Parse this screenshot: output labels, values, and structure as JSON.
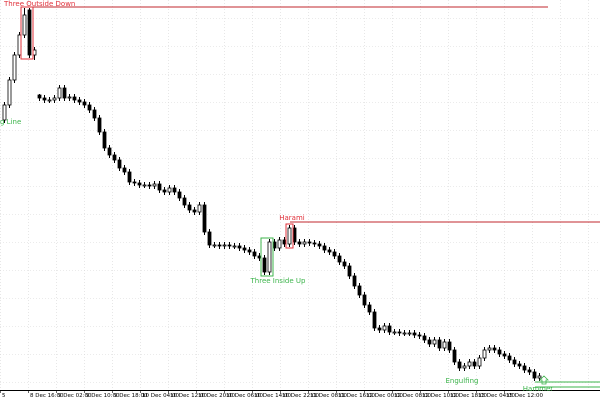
{
  "chart_data": {
    "type": "candlestick",
    "ylim": [
      0,
      400
    ],
    "grid": true,
    "bull_color": "#ffffff",
    "bear_color": "#000000",
    "x_labels": [
      "5",
      "8 Dec 16:00",
      "9 Dec 02:00",
      "9 Dec 10:00",
      "9 Dec 18:00",
      "10 Dec 04:00",
      "10 Dec 12:00",
      "10 Dec 20:00",
      "10 Dec 06:00",
      "10 Dec 14:00",
      "10 Dec 22:00",
      "11 Dec 08:00",
      "11 Dec 16:00",
      "12 Dec 00:00",
      "12 Dec 08:00",
      "12 Dec 10:00",
      "12 Dec 18:00",
      "13 Dec 04:00",
      "15 Dec 12:00"
    ],
    "ohlc": [
      [
        280,
        298,
        277,
        295
      ],
      [
        295,
        323,
        292,
        320
      ],
      [
        320,
        348,
        317,
        345
      ],
      [
        345,
        368,
        342,
        365
      ],
      [
        365,
        392,
        362,
        385
      ],
      [
        390,
        392,
        342,
        345
      ],
      [
        345,
        353,
        340,
        350
      ],
      [
        305,
        306,
        299,
        302
      ],
      [
        302,
        305,
        297,
        300
      ],
      [
        300,
        303,
        297,
        300
      ],
      [
        300,
        305,
        297,
        302
      ],
      [
        302,
        315,
        299,
        312
      ],
      [
        312,
        315,
        299,
        302
      ],
      [
        302,
        306,
        299,
        303
      ],
      [
        303,
        306,
        297,
        300
      ],
      [
        300,
        303,
        295,
        298
      ],
      [
        298,
        301,
        292,
        295
      ],
      [
        295,
        298,
        287,
        290
      ],
      [
        290,
        293,
        279,
        282
      ],
      [
        282,
        285,
        265,
        268
      ],
      [
        268,
        271,
        249,
        252
      ],
      [
        252,
        255,
        242,
        245
      ],
      [
        245,
        248,
        237,
        240
      ],
      [
        240,
        243,
        229,
        232
      ],
      [
        232,
        235,
        225,
        228
      ],
      [
        228,
        231,
        215,
        218
      ],
      [
        218,
        221,
        214,
        217
      ],
      [
        217,
        220,
        212,
        215
      ],
      [
        215,
        218,
        212,
        215
      ],
      [
        215,
        218,
        211,
        214
      ],
      [
        214,
        219,
        211,
        216
      ],
      [
        216,
        219,
        207,
        210
      ],
      [
        210,
        213,
        205,
        208
      ],
      [
        208,
        215,
        205,
        212
      ],
      [
        212,
        215,
        205,
        208
      ],
      [
        208,
        211,
        199,
        202
      ],
      [
        202,
        205,
        192,
        195
      ],
      [
        195,
        198,
        187,
        190
      ],
      [
        190,
        193,
        185,
        188
      ],
      [
        188,
        198,
        185,
        195
      ],
      [
        195,
        198,
        165,
        168
      ],
      [
        168,
        171,
        152,
        155
      ],
      [
        155,
        158,
        152,
        155
      ],
      [
        155,
        158,
        151,
        154
      ],
      [
        154,
        158,
        151,
        155
      ],
      [
        155,
        158,
        151,
        154
      ],
      [
        154,
        157,
        151,
        154
      ],
      [
        154,
        157,
        149,
        152
      ],
      [
        152,
        155,
        147,
        150
      ],
      [
        150,
        153,
        145,
        148
      ],
      [
        148,
        151,
        141,
        144
      ],
      [
        144,
        147,
        139,
        142
      ],
      [
        142,
        145,
        125,
        128
      ],
      [
        128,
        161,
        125,
        158
      ],
      [
        158,
        161,
        149,
        152
      ],
      [
        152,
        163,
        149,
        160
      ],
      [
        160,
        163,
        153,
        156
      ],
      [
        156,
        175,
        153,
        172
      ],
      [
        172,
        175,
        155,
        158
      ],
      [
        158,
        161,
        153,
        156
      ],
      [
        156,
        161,
        153,
        158
      ],
      [
        158,
        161,
        154,
        157
      ],
      [
        157,
        160,
        153,
        156
      ],
      [
        156,
        159,
        151,
        154
      ],
      [
        154,
        157,
        147,
        150
      ],
      [
        150,
        153,
        145,
        148
      ],
      [
        148,
        151,
        141,
        144
      ],
      [
        144,
        147,
        135,
        138
      ],
      [
        138,
        141,
        131,
        134
      ],
      [
        134,
        137,
        121,
        124
      ],
      [
        124,
        127,
        111,
        114
      ],
      [
        114,
        117,
        102,
        105
      ],
      [
        105,
        108,
        92,
        95
      ],
      [
        95,
        98,
        85,
        88
      ],
      [
        88,
        91,
        69,
        72
      ],
      [
        72,
        75,
        67,
        70
      ],
      [
        70,
        77,
        67,
        74
      ],
      [
        74,
        77,
        65,
        68
      ],
      [
        68,
        71,
        65,
        68
      ],
      [
        68,
        71,
        64,
        67
      ],
      [
        67,
        70,
        64,
        67
      ],
      [
        67,
        70,
        64,
        67
      ],
      [
        67,
        70,
        62,
        65
      ],
      [
        65,
        68,
        61,
        64
      ],
      [
        64,
        67,
        57,
        60
      ],
      [
        60,
        63,
        53,
        56
      ],
      [
        56,
        63,
        53,
        60
      ],
      [
        60,
        63,
        49,
        52
      ],
      [
        52,
        61,
        49,
        58
      ],
      [
        58,
        61,
        47,
        50
      ],
      [
        50,
        53,
        35,
        38
      ],
      [
        38,
        41,
        29,
        32
      ],
      [
        32,
        37,
        29,
        34
      ],
      [
        34,
        41,
        31,
        38
      ],
      [
        38,
        41,
        31,
        34
      ],
      [
        34,
        45,
        31,
        42
      ],
      [
        42,
        53,
        39,
        50
      ],
      [
        50,
        55,
        47,
        52
      ],
      [
        52,
        55,
        47,
        50
      ],
      [
        50,
        53,
        43,
        46
      ],
      [
        46,
        49,
        41,
        44
      ],
      [
        44,
        47,
        37,
        40
      ],
      [
        40,
        43,
        33,
        36
      ],
      [
        36,
        39,
        31,
        34
      ],
      [
        34,
        37,
        27,
        30
      ],
      [
        30,
        33,
        25,
        28
      ],
      [
        28,
        31,
        19,
        22
      ],
      [
        22,
        27,
        19,
        24
      ]
    ],
    "levels": [
      {
        "value": 393,
        "color": "#c0272d"
      },
      {
        "value": 178,
        "color": "#c0272d"
      },
      {
        "value": 18,
        "color": "#3cb44b"
      },
      {
        "value": 13,
        "color": "#3cb44b"
      }
    ],
    "annotations": [
      {
        "text": "Three Outside Down",
        "color": "#e0303a"
      },
      {
        "text": "g Line",
        "color": "#3cb44b"
      },
      {
        "text": "Harami",
        "color": "#e0303a"
      },
      {
        "text": "Three Inside Up",
        "color": "#3cb44b"
      },
      {
        "text": "Engulfing",
        "color": "#3cb44b"
      },
      {
        "text": "Hammer",
        "color": "#3cb44b"
      }
    ]
  }
}
